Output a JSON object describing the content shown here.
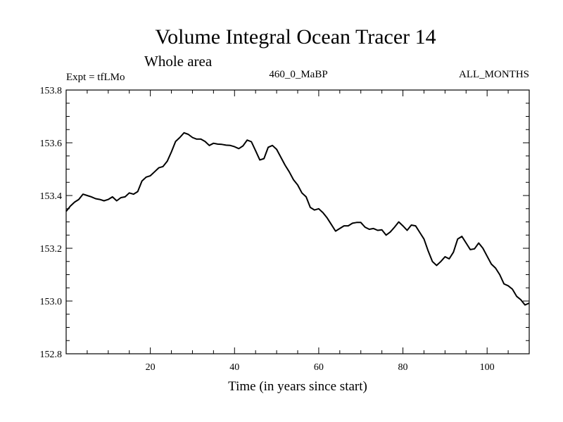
{
  "chart_data": {
    "type": "line",
    "title": "Volume Integral Ocean Tracer 14",
    "subtitle": "Whole area",
    "left_label": "Expt = tfLMo",
    "center_label": "460_0_MaBP",
    "right_label": "ALL_MONTHS",
    "xlabel": "Time (in years since start)",
    "ylabel": "",
    "xlim": [
      0,
      110
    ],
    "ylim": [
      152.8,
      153.8
    ],
    "xticks": [
      20,
      40,
      60,
      80,
      100
    ],
    "yticks": [
      152.8,
      153.0,
      153.2,
      153.4,
      153.6,
      153.8
    ],
    "ytick_labels": [
      "152.8",
      "153.0",
      "153.2",
      "153.4",
      "153.6",
      "153.8"
    ],
    "grid": false,
    "series": [
      {
        "name": "",
        "color": "#000000",
        "x": [
          0,
          1,
          2,
          3,
          4,
          5,
          6,
          7,
          8,
          9,
          10,
          11,
          12,
          13,
          14,
          15,
          16,
          17,
          18,
          19,
          20,
          21,
          22,
          23,
          24,
          25,
          26,
          27,
          28,
          29,
          30,
          31,
          32,
          33,
          34,
          35,
          36,
          37,
          38,
          39,
          40,
          41,
          42,
          43,
          44,
          45,
          46,
          47,
          48,
          49,
          50,
          51,
          52,
          53,
          54,
          55,
          56,
          57,
          58,
          59,
          60,
          61,
          62,
          63,
          64,
          65,
          66,
          67,
          68,
          69,
          70,
          71,
          72,
          73,
          74,
          75,
          76,
          77,
          78,
          79,
          80,
          81,
          82,
          83,
          84,
          85,
          86,
          87,
          88,
          89,
          90,
          91,
          92,
          93,
          94,
          95,
          96,
          97,
          98,
          99,
          100,
          101,
          102,
          103,
          104,
          105,
          106,
          107,
          108,
          109,
          110
        ],
        "values": [
          153.34,
          153.36,
          153.375,
          153.385,
          153.405,
          153.4,
          153.395,
          153.388,
          153.385,
          153.38,
          153.385,
          153.395,
          153.38,
          153.392,
          153.395,
          153.41,
          153.405,
          153.415,
          153.455,
          153.47,
          153.475,
          153.49,
          153.505,
          153.51,
          153.53,
          153.565,
          153.605,
          153.62,
          153.638,
          153.632,
          153.62,
          153.614,
          153.614,
          153.605,
          153.59,
          153.598,
          153.595,
          153.594,
          153.591,
          153.59,
          153.585,
          153.578,
          153.588,
          153.61,
          153.604,
          153.57,
          153.535,
          153.54,
          153.583,
          153.59,
          153.575,
          153.545,
          153.515,
          153.49,
          153.46,
          153.44,
          153.41,
          153.395,
          153.355,
          153.345,
          153.35,
          153.335,
          153.315,
          153.29,
          153.265,
          153.275,
          153.285,
          153.285,
          153.295,
          153.298,
          153.298,
          153.28,
          153.272,
          153.275,
          153.268,
          153.27,
          153.25,
          153.262,
          153.28,
          153.3,
          153.285,
          153.268,
          153.288,
          153.285,
          153.26,
          153.235,
          153.19,
          153.15,
          153.135,
          153.15,
          153.168,
          153.16,
          153.185,
          153.235,
          153.245,
          153.22,
          153.195,
          153.198,
          153.22,
          153.2,
          153.17,
          153.14,
          153.125,
          153.1,
          153.065,
          153.058,
          153.045,
          153.018,
          153.005,
          152.985,
          152.992
        ]
      }
    ]
  }
}
